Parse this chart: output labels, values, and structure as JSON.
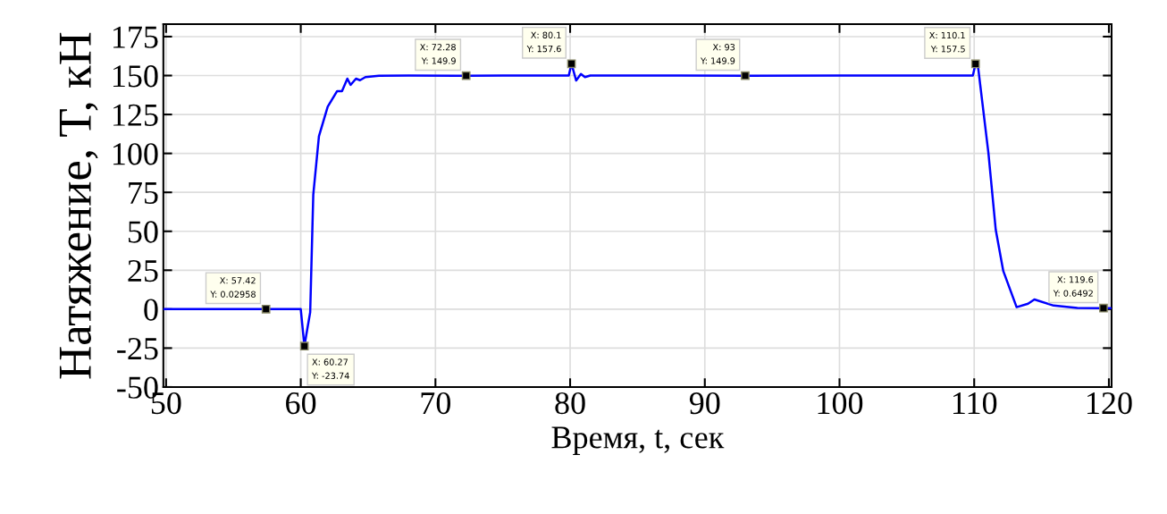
{
  "chart_data": {
    "type": "line",
    "xlabel": "Время, t, сек",
    "ylabel": "Натяжение, T, кН",
    "xlim": [
      49.8,
      120.2
    ],
    "xticks": [
      50,
      60,
      70,
      80,
      90,
      100,
      110,
      120
    ],
    "ylim": [
      -50,
      183
    ],
    "yticks": [
      -50,
      -25,
      0,
      25,
      50,
      75,
      100,
      125,
      150,
      175
    ],
    "grid": true,
    "line_style": "solid",
    "marker": "none",
    "series": [
      {
        "color": "#0000ff",
        "x": [
          49.8,
          55,
          59.6,
          60.0,
          60.27,
          60.5,
          60.7,
          60.93,
          61.35,
          62.0,
          62.7,
          63.06,
          63.46,
          63.7,
          64.1,
          64.4,
          64.8,
          65.8,
          68,
          72.28,
          75,
          79.9,
          80.1,
          80.45,
          80.8,
          81.1,
          81.5,
          85,
          93,
          100,
          109.9,
          110.1,
          110.3,
          111.06,
          111.6,
          112.16,
          113.15,
          114.0,
          114.47,
          115.9,
          117.66,
          119.6,
          120.2
        ],
        "values": [
          0,
          0,
          0,
          0,
          -23.74,
          -12,
          -2,
          73.6,
          111,
          130,
          140,
          140,
          148,
          144,
          148,
          147,
          149,
          149.8,
          150,
          149.9,
          150,
          150,
          157.6,
          146.8,
          151,
          149,
          150,
          150,
          149.9,
          150,
          150,
          157.5,
          154.7,
          100,
          51,
          24.5,
          1.3,
          3.5,
          6.2,
          2.3,
          0.8,
          0.6492,
          0.6
        ]
      }
    ],
    "annotations": [
      {
        "text": "X: 57.42\nY: 0.02958",
        "x": 57.42,
        "y": 0.02958
      },
      {
        "text": "X: 60.27\nY: -23.74",
        "x": 60.27,
        "y": -23.74
      },
      {
        "text": "X: 72.28\nY: 149.9",
        "x": 72.28,
        "y": 149.9
      },
      {
        "text": "X: 80.1\nY: 157.6",
        "x": 80.1,
        "y": 157.6
      },
      {
        "text": "X: 93\nY: 149.9",
        "x": 93,
        "y": 149.9
      },
      {
        "text": "X: 110.1\nY: 157.5",
        "x": 110.1,
        "y": 157.5
      },
      {
        "text": "X: 119.6\nY: 0.6492",
        "x": 119.6,
        "y": 0.6492
      }
    ]
  }
}
